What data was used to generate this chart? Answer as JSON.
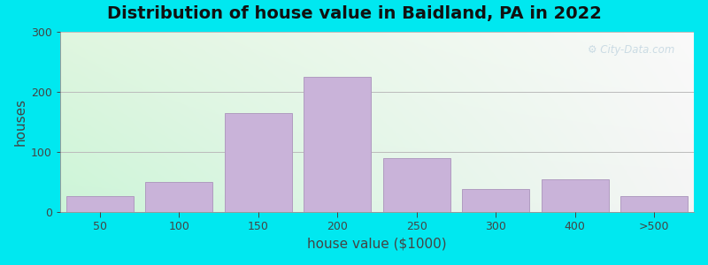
{
  "title": "Distribution of house value in Baidland, PA in 2022",
  "xlabel": "house value ($1000)",
  "ylabel": "houses",
  "bar_labels": [
    "50",
    "100",
    "150",
    "200",
    "250",
    "300",
    "400",
    ">500"
  ],
  "bar_heights": [
    27,
    50,
    165,
    225,
    90,
    38,
    55,
    27
  ],
  "bar_color": "#c9b3d9",
  "bar_edgecolor": "#b09cc0",
  "ylim": [
    0,
    300
  ],
  "yticks": [
    0,
    100,
    200,
    300
  ],
  "bg_outer_color": "#00e8f0",
  "title_fontsize": 14,
  "axis_label_fontsize": 11,
  "watermark_text": "⚙ City-Data.com",
  "watermark_color": "#aec8d8",
  "watermark_alpha": 0.6,
  "tl": [
    0.878,
    0.965,
    0.878
  ],
  "tr": [
    0.98,
    0.98,
    0.98
  ],
  "bl": [
    0.8,
    0.96,
    0.847
  ],
  "br": [
    0.96,
    0.96,
    0.96
  ]
}
